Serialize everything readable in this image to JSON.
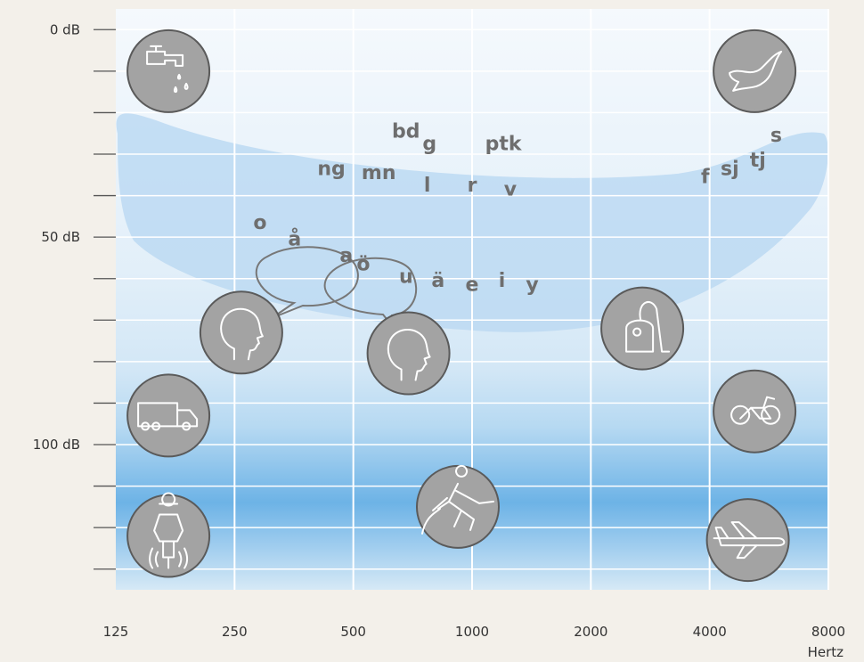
{
  "chart_data": {
    "type": "scatter",
    "xscale": "log2",
    "x_ticks": [
      125,
      250,
      500,
      1000,
      2000,
      4000,
      8000
    ],
    "x_tick_labels": [
      "125",
      "250",
      "500",
      "1000",
      "2000",
      "4000",
      "8000"
    ],
    "x_unit_label": "Hertz",
    "y_labeled_ticks": [
      {
        "value": 0,
        "label": "0 dB"
      },
      {
        "value": 50,
        "label": "50 dB"
      },
      {
        "value": 100,
        "label": "100 dB"
      }
    ],
    "y_tick_values": [
      0,
      10,
      20,
      30,
      40,
      50,
      60,
      70,
      80,
      90,
      100,
      110,
      120,
      130
    ],
    "ylim": [
      -5,
      135
    ],
    "y_inverted": true,
    "grid": true,
    "colors": {
      "background": "#f3f0ea",
      "plot_top": "#f3f8fd",
      "plot_band": "#6db3e6",
      "speech_banana": "#bcd9f2",
      "icon_fill": "#a3a3a3",
      "phoneme_text": "#6e6e6e"
    },
    "speech_banana_label": "",
    "phonemes": [
      {
        "text": "o",
        "x": 290,
        "y": 48
      },
      {
        "text": "å",
        "x": 355,
        "y": 52
      },
      {
        "text": "a",
        "x": 480,
        "y": 56
      },
      {
        "text": "ö",
        "x": 530,
        "y": 58
      },
      {
        "text": "u",
        "x": 680,
        "y": 61
      },
      {
        "text": "ä",
        "x": 820,
        "y": 62
      },
      {
        "text": "e",
        "x": 1000,
        "y": 63
      },
      {
        "text": "i",
        "x": 1190,
        "y": 62
      },
      {
        "text": "y",
        "x": 1420,
        "y": 63
      },
      {
        "text": "ng",
        "x": 440,
        "y": 35
      },
      {
        "text": "mn",
        "x": 580,
        "y": 36
      },
      {
        "text": "bd",
        "x": 680,
        "y": 26
      },
      {
        "text": "g",
        "x": 780,
        "y": 29
      },
      {
        "text": "l",
        "x": 770,
        "y": 39
      },
      {
        "text": "r",
        "x": 1000,
        "y": 39
      },
      {
        "text": "ptk",
        "x": 1200,
        "y": 29
      },
      {
        "text": "v",
        "x": 1250,
        "y": 40
      },
      {
        "text": "f",
        "x": 3900,
        "y": 37
      },
      {
        "text": "sj",
        "x": 4500,
        "y": 35
      },
      {
        "text": "tj",
        "x": 5300,
        "y": 33
      },
      {
        "text": "s",
        "x": 5900,
        "y": 27
      }
    ],
    "sound_sources": [
      {
        "icon": "dripping-tap-icon",
        "x": 170,
        "y": 10
      },
      {
        "icon": "bird-icon",
        "x": 5200,
        "y": 10
      },
      {
        "icon": "speaking-head-icon",
        "x": 260,
        "y": 73
      },
      {
        "icon": "speaking-head-icon",
        "x": 690,
        "y": 78
      },
      {
        "icon": "vacuum-cleaner-icon",
        "x": 2700,
        "y": 72
      },
      {
        "icon": "truck-icon",
        "x": 170,
        "y": 93
      },
      {
        "icon": "motorcycle-icon",
        "x": 5200,
        "y": 92
      },
      {
        "icon": "pneumatic-drill-icon",
        "x": 920,
        "y": 115
      },
      {
        "icon": "jackhammer-worker-icon",
        "x": 170,
        "y": 122
      },
      {
        "icon": "airplane-icon",
        "x": 5000,
        "y": 123
      }
    ]
  }
}
